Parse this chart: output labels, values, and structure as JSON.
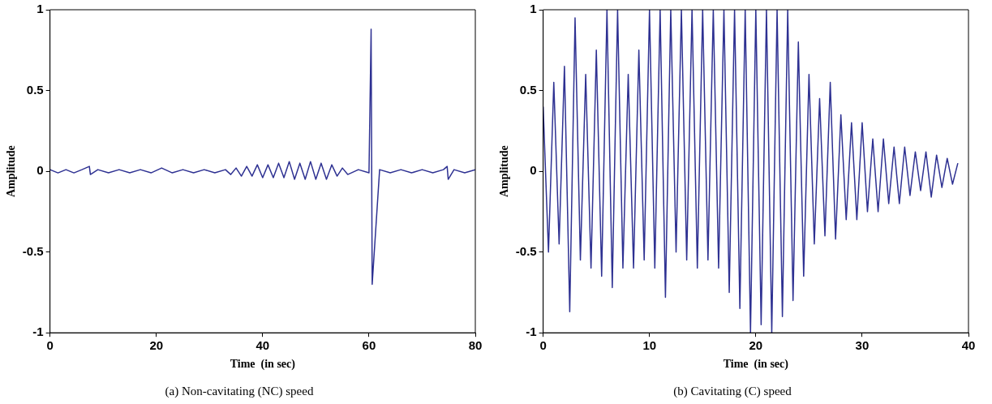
{
  "chart_data": [
    {
      "type": "line",
      "title": "(a) Non-cavitating (NC) speed",
      "xlabel": "Time  (in sec)",
      "ylabel": "Amplitude",
      "color": "#2e3192",
      "marker": "none",
      "x": [
        0,
        1.5,
        3,
        4.5,
        6,
        7.4,
        7.6,
        9,
        11,
        13,
        15,
        17,
        19,
        21,
        23,
        25,
        27,
        29,
        31,
        33,
        34,
        35,
        36,
        37,
        38,
        39,
        40,
        41,
        42,
        43,
        44,
        45,
        46,
        47,
        48,
        49,
        50,
        51,
        52,
        53,
        54,
        55,
        56,
        58,
        60,
        60.4,
        60.6,
        62,
        64,
        66,
        68,
        70,
        72,
        74,
        74.7,
        74.9,
        76,
        78,
        80
      ],
      "values": [
        0.01,
        -0.01,
        0.01,
        -0.01,
        0.01,
        0.03,
        -0.02,
        0.01,
        -0.01,
        0.01,
        -0.01,
        0.01,
        -0.01,
        0.02,
        -0.01,
        0.01,
        -0.01,
        0.01,
        -0.01,
        0.01,
        -0.02,
        0.02,
        -0.03,
        0.03,
        -0.03,
        0.04,
        -0.04,
        0.04,
        -0.04,
        0.05,
        -0.04,
        0.06,
        -0.05,
        0.05,
        -0.05,
        0.06,
        -0.05,
        0.05,
        -0.05,
        0.04,
        -0.03,
        0.02,
        -0.02,
        0.01,
        -0.01,
        0.88,
        -0.7,
        0.01,
        -0.01,
        0.01,
        -0.01,
        0.01,
        -0.01,
        0.01,
        0.03,
        -0.05,
        0.01,
        -0.01,
        0.01
      ],
      "xlim": [
        0,
        80
      ],
      "xticks": [
        0,
        20,
        40,
        60,
        80
      ],
      "ylim": [
        -1,
        1
      ],
      "yticks": [
        -1,
        -0.5,
        0,
        0.5,
        1
      ]
    },
    {
      "type": "line",
      "title": "(b) Cavitating (C) speed",
      "xlabel": "Time  (in sec)",
      "ylabel": "Amplitude",
      "color": "#2e3192",
      "marker": "none",
      "x": [
        0,
        0.5,
        1,
        1.5,
        2,
        2.5,
        3,
        3.5,
        4,
        4.5,
        5,
        5.5,
        6,
        6.5,
        7,
        7.5,
        8,
        8.5,
        9,
        9.5,
        10,
        10.5,
        11,
        11.5,
        12,
        12.5,
        13,
        13.5,
        14,
        14.5,
        15,
        15.5,
        16,
        16.5,
        17,
        17.5,
        18,
        18.5,
        19,
        19.5,
        20,
        20.5,
        21,
        21.5,
        22,
        22.5,
        23,
        23.5,
        24,
        24.5,
        25,
        25.5,
        26,
        26.5,
        27,
        27.5,
        28,
        28.5,
        29,
        29.5,
        30,
        30.5,
        31,
        31.5,
        32,
        32.5,
        33,
        33.5,
        34,
        34.5,
        35,
        35.5,
        36,
        36.5,
        37,
        37.5,
        38,
        38.5,
        39
      ],
      "values": [
        0.4,
        -0.5,
        0.55,
        -0.45,
        0.65,
        -0.87,
        0.95,
        -0.55,
        0.6,
        -0.6,
        0.75,
        -0.65,
        1,
        -0.72,
        1,
        -0.6,
        0.6,
        -0.6,
        0.75,
        -0.55,
        1,
        -0.6,
        1,
        -0.78,
        1,
        -0.5,
        1,
        -0.55,
        1,
        -0.6,
        1,
        -0.55,
        1,
        -0.6,
        1,
        -0.75,
        1,
        -0.85,
        1,
        -1,
        1,
        -0.95,
        1,
        -1,
        1,
        -0.9,
        1,
        -0.8,
        0.8,
        -0.65,
        0.6,
        -0.45,
        0.45,
        -0.4,
        0.55,
        -0.42,
        0.35,
        -0.3,
        0.3,
        -0.3,
        0.3,
        -0.25,
        0.2,
        -0.25,
        0.2,
        -0.2,
        0.15,
        -0.2,
        0.15,
        -0.15,
        0.12,
        -0.12,
        0.12,
        -0.16,
        0.1,
        -0.1,
        0.08,
        -0.08,
        0.05
      ],
      "xlim": [
        0,
        40
      ],
      "xticks": [
        0,
        10,
        20,
        30,
        40
      ],
      "ylim": [
        -1,
        1
      ],
      "yticks": [
        -1,
        -0.5,
        0,
        0.5,
        1
      ]
    }
  ]
}
